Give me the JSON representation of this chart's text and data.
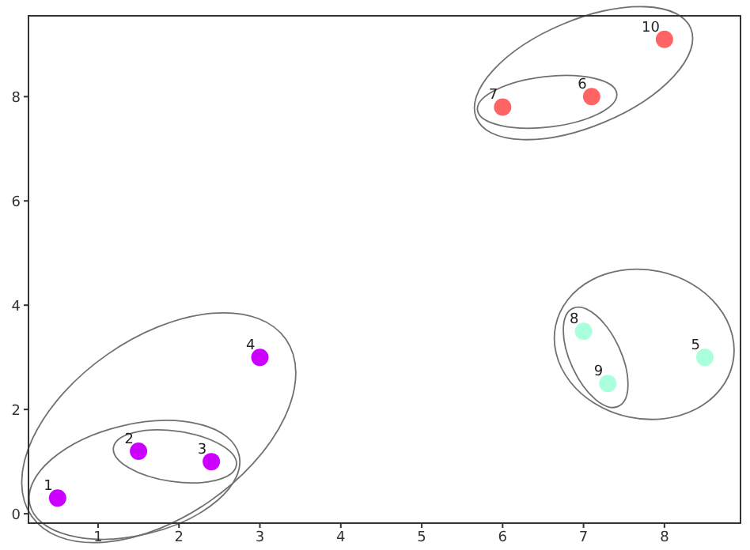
{
  "chart_data": {
    "type": "scatter",
    "xlim": [
      0.14,
      8.94
    ],
    "ylim": [
      -0.18,
      9.55
    ],
    "xticks": [
      1,
      2,
      3,
      4,
      5,
      6,
      7,
      8
    ],
    "yticks": [
      0,
      2,
      4,
      6,
      8
    ],
    "grid": false,
    "legend": false,
    "marker": "circle",
    "series": [
      {
        "color": "#cc00ff",
        "x": [
          0.5,
          1.5,
          2.4,
          3
        ],
        "values": [
          0.3,
          1.2,
          1.0,
          3
        ]
      },
      {
        "color": "#ff6464",
        "x": [
          7.1,
          6,
          8
        ],
        "values": [
          8,
          7.8,
          9.1
        ]
      },
      {
        "color": "#aaffdd",
        "x": [
          8.5,
          7,
          7.3
        ],
        "values": [
          3,
          3.5,
          2.5
        ]
      }
    ],
    "annotations": [
      {
        "text": "1",
        "x": 0.5,
        "y": 0.3
      },
      {
        "text": "2",
        "x": 1.5,
        "y": 1.2
      },
      {
        "text": "3",
        "x": 2.4,
        "y": 1.0
      },
      {
        "text": "4",
        "x": 3,
        "y": 3
      },
      {
        "text": "5",
        "x": 8.5,
        "y": 3
      },
      {
        "text": "6",
        "x": 7.1,
        "y": 8
      },
      {
        "text": "7",
        "x": 6,
        "y": 7.8
      },
      {
        "text": "8",
        "x": 7,
        "y": 3.5
      },
      {
        "text": "9",
        "x": 7.3,
        "y": 2.5
      },
      {
        "text": "10",
        "x": 8,
        "y": 9.1
      }
    ]
  }
}
